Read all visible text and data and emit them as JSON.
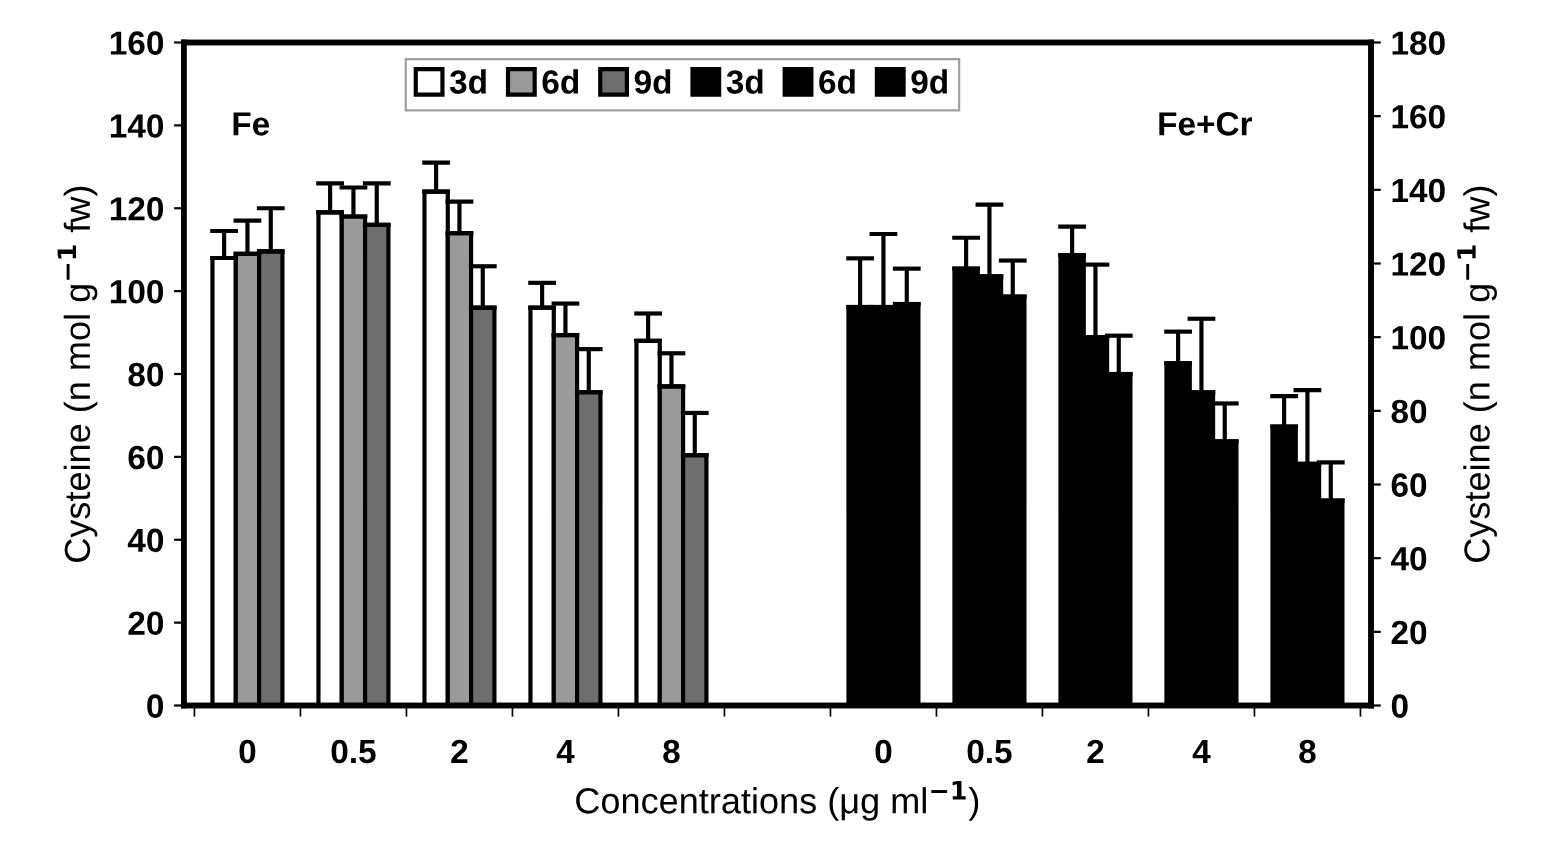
{
  "chart_data": {
    "type": "bar",
    "xlabel": "Concentrations (μg ml$^{−1}$)",
    "ylabel": "Cysteine (n mol g$^{−1}$ fw)",
    "y2label": "Cysteine (n mol g$^{−1}$ fw)",
    "annotations": [
      "Fe",
      "Fe+Cr"
    ],
    "categories": [
      "0",
      "0.5",
      "2",
      "4",
      "8",
      null,
      "0",
      "0.5",
      "2",
      "4",
      "8"
    ],
    "series": [
      {
        "name": "3d",
        "color": "#ffffff",
        "values": [
          108,
          119,
          124,
          96,
          88,
          null,
          null,
          null,
          null,
          null,
          null
        ],
        "errors": [
          [
            108,
            114.5
          ],
          [
            119,
            126
          ],
          [
            124,
            131
          ],
          [
            96,
            102
          ],
          [
            88,
            94.6
          ],
          null,
          null,
          null,
          null,
          null,
          null
        ]
      },
      {
        "name": "6d",
        "color": "#9a9a9a",
        "values": [
          109,
          118,
          114,
          89.4,
          77,
          null,
          null,
          null,
          null,
          null,
          null
        ],
        "errors": [
          [
            109,
            117
          ],
          [
            118,
            125
          ],
          [
            114,
            121.6
          ],
          [
            89.4,
            97
          ],
          [
            77,
            85
          ],
          null,
          null,
          null,
          null,
          null,
          null
        ]
      },
      {
        "name": "9d",
        "color": "#6e6e6e",
        "values": [
          109.6,
          116,
          96,
          75.6,
          60.4,
          null,
          null,
          null,
          null,
          null,
          null
        ],
        "errors": [
          [
            109.6,
            120
          ],
          [
            116,
            126
          ],
          [
            96,
            106
          ],
          [
            75.6,
            86
          ],
          [
            60.4,
            70.6
          ],
          null,
          null,
          null,
          null,
          null,
          null
        ]
      },
      {
        "name": "3d",
        "color": "#000000",
        "axis": "y2",
        "values": [
          null,
          null,
          null,
          null,
          null,
          null,
          108.2,
          118.6,
          122.3,
          92.9,
          75.7
        ],
        "errors": [
          null,
          null,
          null,
          null,
          null,
          null,
          [
            108.2,
            121.4
          ],
          [
            118.6,
            127
          ],
          [
            122.3,
            130
          ],
          [
            92.9,
            101.5
          ],
          [
            75.7,
            84
          ]
        ]
      },
      {
        "name": "6d",
        "color": "#000000",
        "axis": "y2",
        "values": [
          null,
          null,
          null,
          null,
          null,
          null,
          108.2,
          116.5,
          100,
          85,
          65.6
        ],
        "errors": [
          null,
          null,
          null,
          null,
          null,
          null,
          [
            108.2,
            128
          ],
          [
            116.5,
            136
          ],
          [
            100,
            119.7
          ],
          [
            85,
            105
          ],
          [
            65.6,
            85.6
          ]
        ]
      },
      {
        "name": "9d",
        "color": "#000000",
        "axis": "y2",
        "values": [
          null,
          null,
          null,
          null,
          null,
          null,
          109,
          111,
          90,
          71.7,
          55.6
        ],
        "errors": [
          null,
          null,
          null,
          null,
          null,
          null,
          [
            109,
            118.6
          ],
          [
            111,
            120.8
          ],
          [
            90,
            100.4
          ],
          [
            71.7,
            82
          ],
          [
            55.6,
            66
          ]
        ]
      }
    ],
    "ylim": [
      0,
      160
    ],
    "yticks": [
      0,
      20,
      40,
      60,
      80,
      100,
      120,
      140,
      160
    ],
    "y2lim": [
      0,
      180
    ],
    "y2ticks": [
      0,
      20,
      40,
      60,
      80,
      100,
      120,
      140,
      160,
      180
    ],
    "grid": false,
    "legend": "top"
  }
}
